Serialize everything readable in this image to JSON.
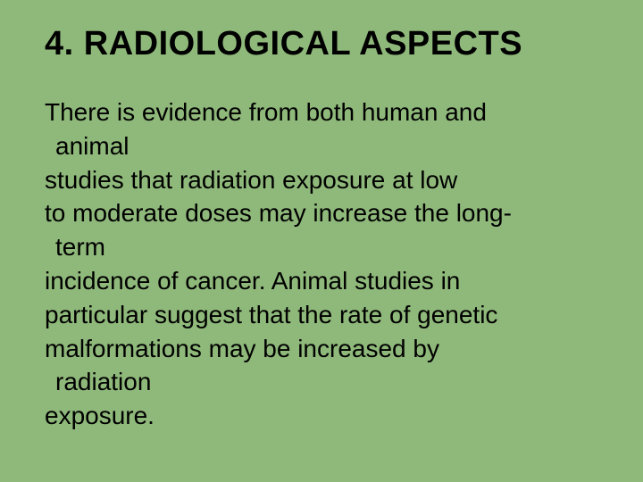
{
  "slide": {
    "background_color": "#8fb97a",
    "text_color": "#000000",
    "heading": {
      "text": "4. RADIOLOGICAL ASPECTS",
      "fontsize": 38,
      "font_weight": "bold"
    },
    "body": {
      "fontsize": 28,
      "lines": [
        {
          "text": "There is evidence from both human and",
          "indent": false
        },
        {
          "text": "animal",
          "indent": true
        },
        {
          "text": "studies that radiation exposure at low",
          "indent": false
        },
        {
          "text": "to moderate doses may increase the long-",
          "indent": false
        },
        {
          "text": "term",
          "indent": true
        },
        {
          "text": "incidence of cancer. Animal studies in",
          "indent": false
        },
        {
          "text": "particular suggest that the rate of genetic",
          "indent": false
        },
        {
          "text": "malformations may be increased by",
          "indent": false
        },
        {
          "text": "radiation",
          "indent": true
        },
        {
          "text": "exposure.",
          "indent": false
        }
      ]
    }
  }
}
